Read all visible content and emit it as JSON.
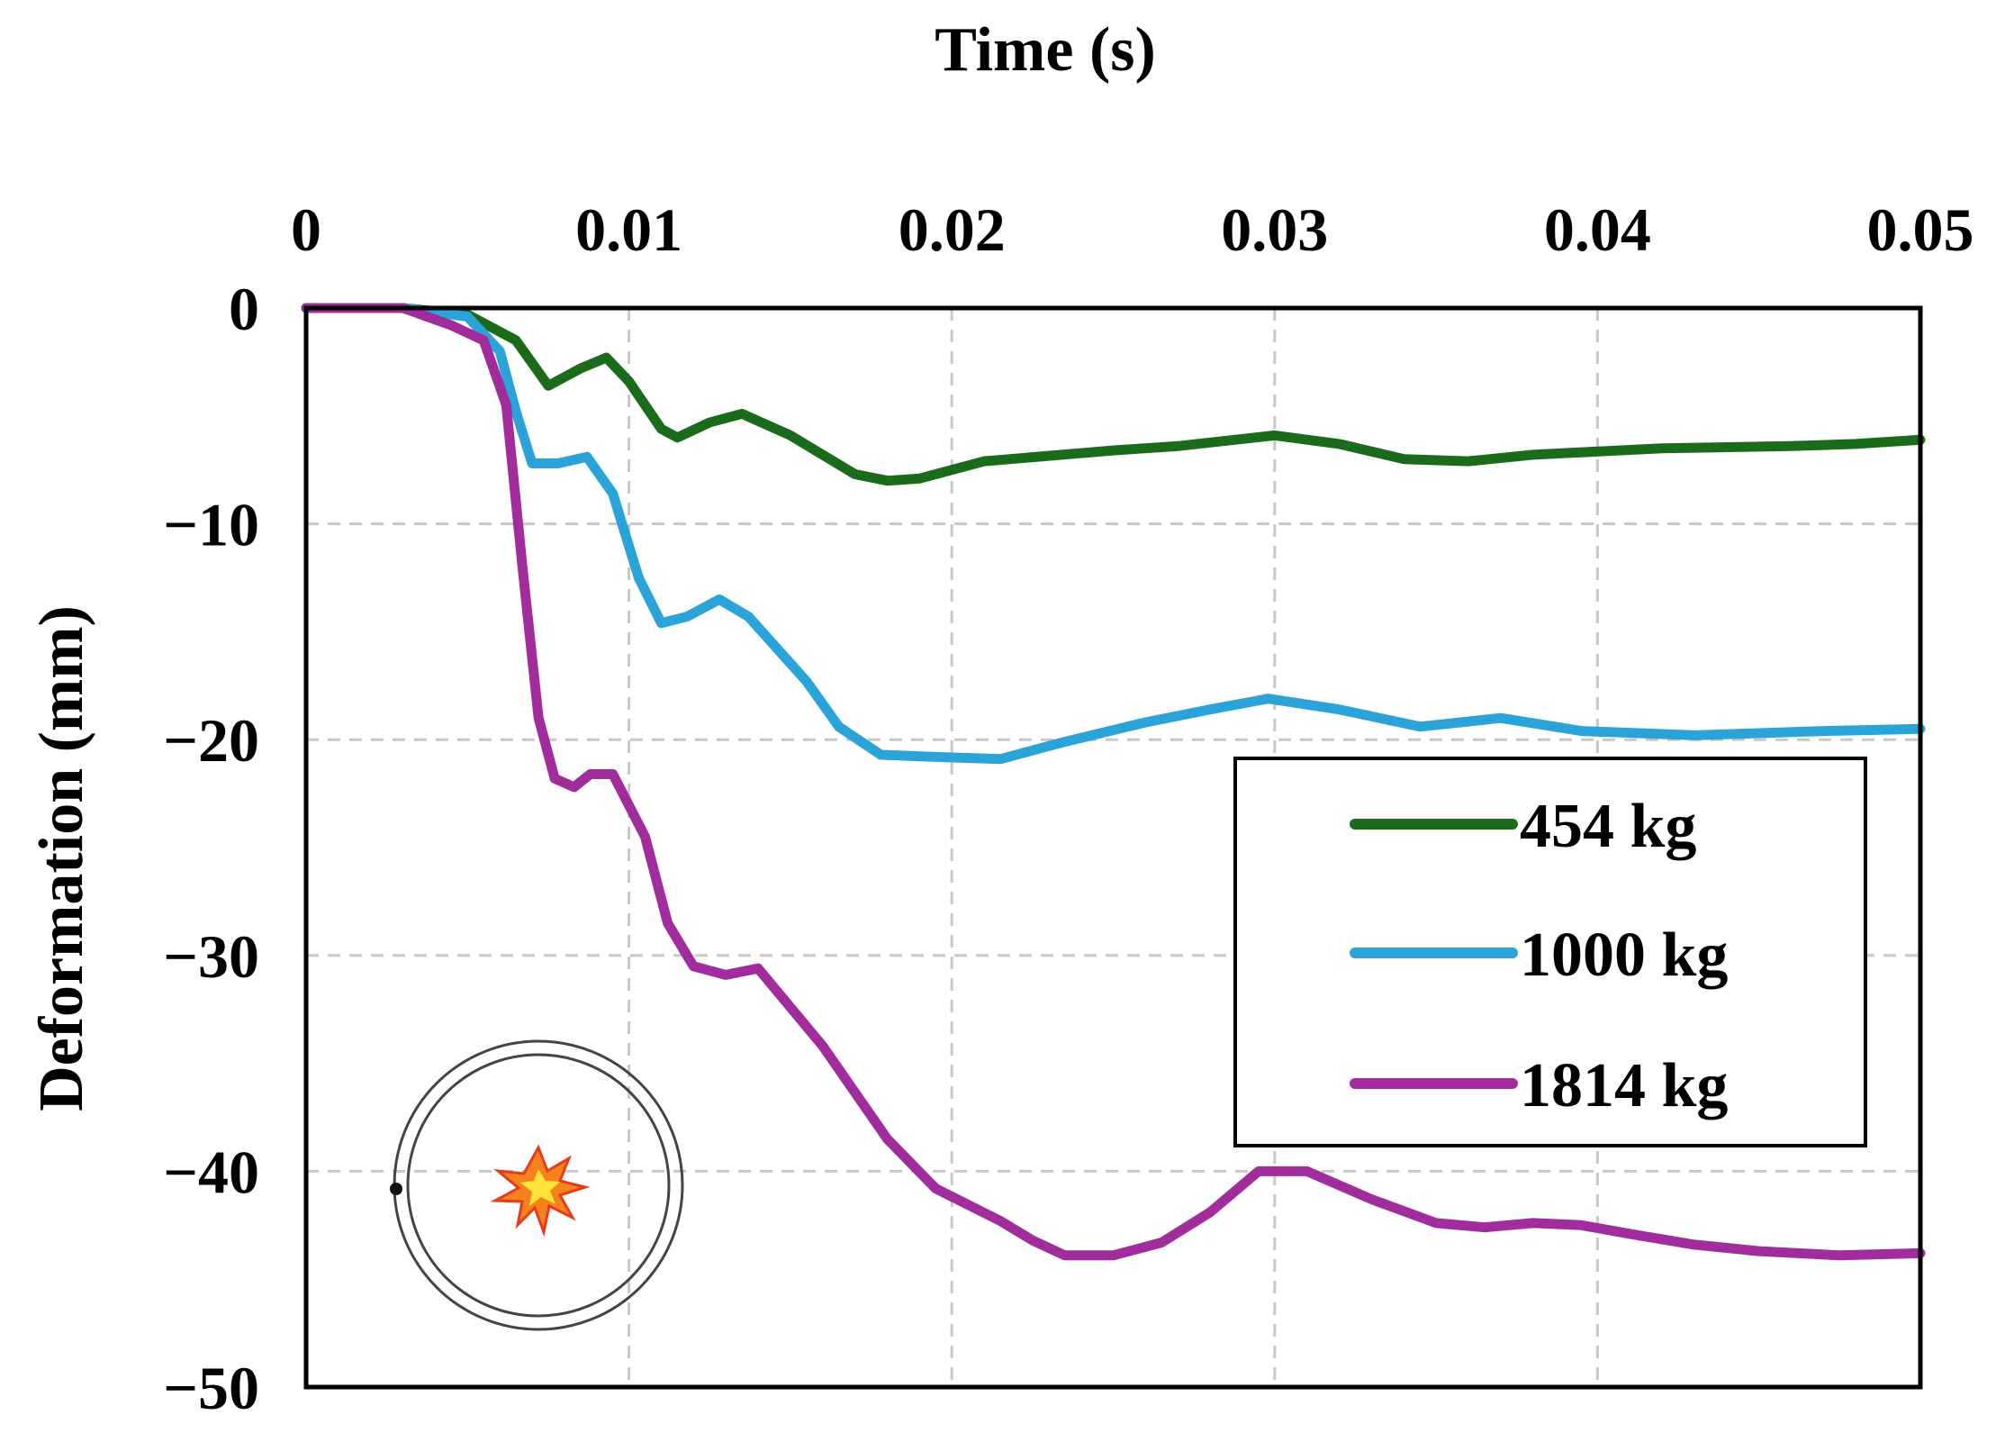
{
  "chart_data": {
    "type": "line",
    "title": "",
    "xlabel": "Time (s)",
    "ylabel": "Deformation (mm)",
    "xlim": [
      0,
      0.05
    ],
    "ylim": [
      -50,
      0
    ],
    "x_axis_position": "top",
    "grid": true,
    "grid_style": "dashed",
    "legend_placement": "right-middle",
    "x_ticks": [
      "0",
      "0.01",
      "0.02",
      "0.03",
      "0.04",
      "0.05"
    ],
    "y_ticks": [
      "0",
      "−10",
      "−20",
      "−30",
      "−40",
      "−50"
    ],
    "series": [
      {
        "name": "454 kg",
        "color": "#1a6b1a",
        "points": [
          [
            0,
            0
          ],
          [
            0.003,
            0
          ],
          [
            0.005,
            -0.3
          ],
          [
            0.0065,
            -1.5
          ],
          [
            0.0075,
            -3.6
          ],
          [
            0.0085,
            -2.8
          ],
          [
            0.0093,
            -2.3
          ],
          [
            0.01,
            -3.4
          ],
          [
            0.011,
            -5.6
          ],
          [
            0.0115,
            -6.0
          ],
          [
            0.0125,
            -5.3
          ],
          [
            0.0135,
            -4.9
          ],
          [
            0.015,
            -5.9
          ],
          [
            0.017,
            -7.7
          ],
          [
            0.018,
            -8.0
          ],
          [
            0.019,
            -7.9
          ],
          [
            0.021,
            -7.1
          ],
          [
            0.025,
            -6.6
          ],
          [
            0.027,
            -6.4
          ],
          [
            0.03,
            -5.9
          ],
          [
            0.032,
            -6.3
          ],
          [
            0.034,
            -7.0
          ],
          [
            0.036,
            -7.1
          ],
          [
            0.038,
            -6.8
          ],
          [
            0.042,
            -6.5
          ],
          [
            0.046,
            -6.4
          ],
          [
            0.048,
            -6.3
          ],
          [
            0.05,
            -6.1
          ]
        ]
      },
      {
        "name": "1000 kg",
        "color": "#2aa4d8",
        "points": [
          [
            0,
            0
          ],
          [
            0.003,
            0
          ],
          [
            0.005,
            -0.4
          ],
          [
            0.006,
            -2.0
          ],
          [
            0.0065,
            -4.8
          ],
          [
            0.007,
            -7.2
          ],
          [
            0.0078,
            -7.2
          ],
          [
            0.0087,
            -6.9
          ],
          [
            0.0095,
            -8.6
          ],
          [
            0.0103,
            -12.5
          ],
          [
            0.011,
            -14.6
          ],
          [
            0.0118,
            -14.3
          ],
          [
            0.0128,
            -13.5
          ],
          [
            0.0137,
            -14.3
          ],
          [
            0.0155,
            -17.3
          ],
          [
            0.0165,
            -19.4
          ],
          [
            0.0178,
            -20.7
          ],
          [
            0.0195,
            -20.8
          ],
          [
            0.0215,
            -20.9
          ],
          [
            0.0235,
            -20.1
          ],
          [
            0.026,
            -19.2
          ],
          [
            0.028,
            -18.6
          ],
          [
            0.0298,
            -18.1
          ],
          [
            0.032,
            -18.6
          ],
          [
            0.0345,
            -19.4
          ],
          [
            0.037,
            -19.0
          ],
          [
            0.0395,
            -19.6
          ],
          [
            0.043,
            -19.8
          ],
          [
            0.047,
            -19.6
          ],
          [
            0.05,
            -19.5
          ]
        ]
      },
      {
        "name": "1814 kg",
        "color": "#a12c9c",
        "points": [
          [
            0,
            0
          ],
          [
            0.003,
            0
          ],
          [
            0.0045,
            -0.8
          ],
          [
            0.0055,
            -1.5
          ],
          [
            0.0062,
            -4.5
          ],
          [
            0.0067,
            -12.0
          ],
          [
            0.0072,
            -19.0
          ],
          [
            0.0077,
            -21.8
          ],
          [
            0.0083,
            -22.2
          ],
          [
            0.0088,
            -21.6
          ],
          [
            0.0095,
            -21.6
          ],
          [
            0.0105,
            -24.5
          ],
          [
            0.0112,
            -28.5
          ],
          [
            0.012,
            -30.5
          ],
          [
            0.013,
            -30.9
          ],
          [
            0.014,
            -30.6
          ],
          [
            0.016,
            -34.2
          ],
          [
            0.018,
            -38.5
          ],
          [
            0.0195,
            -40.8
          ],
          [
            0.0215,
            -42.3
          ],
          [
            0.0225,
            -43.2
          ],
          [
            0.0235,
            -43.9
          ],
          [
            0.025,
            -43.9
          ],
          [
            0.0265,
            -43.3
          ],
          [
            0.028,
            -41.9
          ],
          [
            0.0295,
            -40.0
          ],
          [
            0.031,
            -40.0
          ],
          [
            0.033,
            -41.3
          ],
          [
            0.035,
            -42.4
          ],
          [
            0.0365,
            -42.6
          ],
          [
            0.038,
            -42.4
          ],
          [
            0.0395,
            -42.5
          ],
          [
            0.041,
            -42.9
          ],
          [
            0.043,
            -43.4
          ],
          [
            0.045,
            -43.7
          ],
          [
            0.0475,
            -43.9
          ],
          [
            0.05,
            -43.8
          ]
        ]
      }
    ]
  }
}
